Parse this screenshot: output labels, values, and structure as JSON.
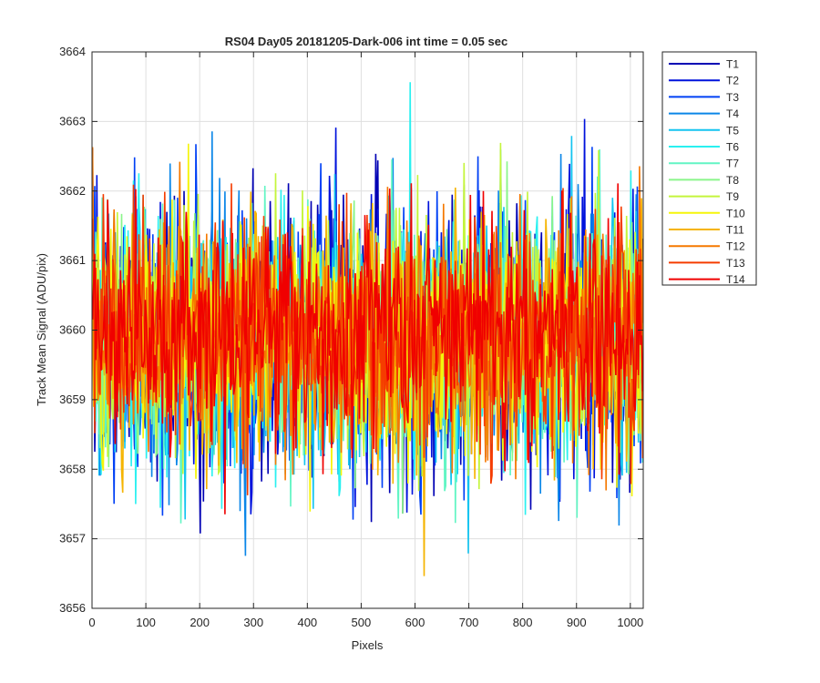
{
  "chart_data": {
    "type": "line",
    "title": "RS04 Day05 20181205-Dark-006 int time = 0.05 sec",
    "xlabel": "Pixels",
    "ylabel": "Track Mean Signal (ADU/pix)",
    "xlim": [
      0,
      1024
    ],
    "ylim": [
      3656,
      3664
    ],
    "xticks": [
      0,
      100,
      200,
      300,
      400,
      500,
      600,
      700,
      800,
      900,
      1000
    ],
    "yticks": [
      3656,
      3657,
      3658,
      3659,
      3660,
      3661,
      3662,
      3663,
      3664
    ],
    "grid": true,
    "legend": "outside-top-right",
    "x_range": [
      1,
      1024
    ],
    "series": [
      {
        "name": "T1",
        "color": "#0000b4",
        "mean": 3659.78,
        "amplitude": 0.95,
        "seed": 11
      },
      {
        "name": "T2",
        "color": "#0012dc",
        "mean": 3659.8,
        "amplitude": 0.95,
        "seed": 23
      },
      {
        "name": "T3",
        "color": "#0040f5",
        "mean": 3659.82,
        "amplitude": 0.92,
        "seed": 37
      },
      {
        "name": "T4",
        "color": "#0a86e8",
        "mean": 3659.84,
        "amplitude": 0.92,
        "seed": 41
      },
      {
        "name": "T5",
        "color": "#14c4f0",
        "mean": 3659.86,
        "amplitude": 0.9,
        "seed": 53
      },
      {
        "name": "T6",
        "color": "#2af0f0",
        "mean": 3659.86,
        "amplitude": 0.9,
        "seed": 67
      },
      {
        "name": "T7",
        "color": "#62f5c4",
        "mean": 3659.88,
        "amplitude": 0.88,
        "seed": 71
      },
      {
        "name": "T8",
        "color": "#8af58a",
        "mean": 3659.88,
        "amplitude": 0.88,
        "seed": 83
      },
      {
        "name": "T9",
        "color": "#c4f53c",
        "mean": 3659.9,
        "amplitude": 0.86,
        "seed": 97
      },
      {
        "name": "T10",
        "color": "#f5f50a",
        "mean": 3659.9,
        "amplitude": 0.86,
        "seed": 101
      },
      {
        "name": "T11",
        "color": "#f5b400",
        "mean": 3659.92,
        "amplitude": 0.86,
        "seed": 113
      },
      {
        "name": "T12",
        "color": "#f57800",
        "mean": 3659.92,
        "amplitude": 0.84,
        "seed": 127
      },
      {
        "name": "T13",
        "color": "#f53c00",
        "mean": 3659.94,
        "amplitude": 0.84,
        "seed": 131
      },
      {
        "name": "T14",
        "color": "#f00000",
        "mean": 3659.94,
        "amplitude": 0.82,
        "seed": 149
      }
    ]
  }
}
